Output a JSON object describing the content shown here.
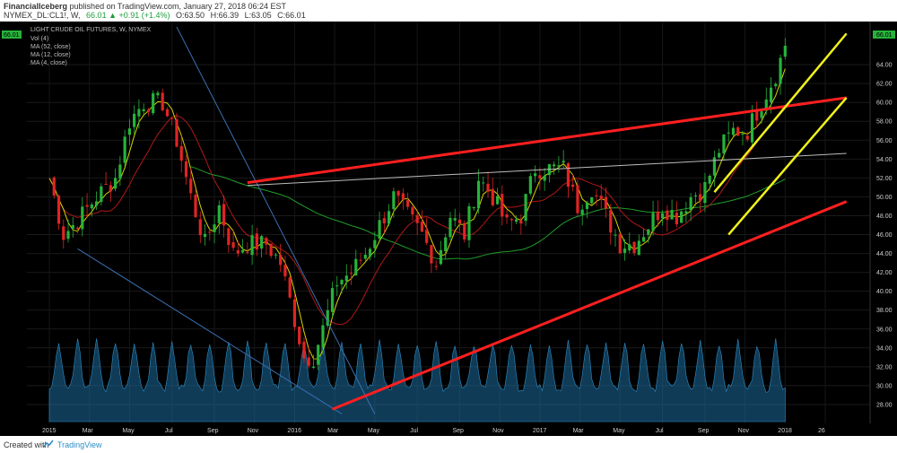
{
  "header": {
    "author": "FinancialIceberg",
    "published_text": "published on TradingView.com, January 27, 2018 06:24 EST",
    "symbol": "NYMEX_DL:CL1!, W,",
    "change": "66.01 ▲ +0.91 (+1.4%)",
    "o": "O:63.50",
    "h": "H:66.39",
    "l": "L:63.05",
    "c": "C:66.01"
  },
  "legend": {
    "title": "LIGHT CRUDE OIL FUTURES, W, NYMEX",
    "l1": "Vol (4)",
    "l2": "MA (52, close)",
    "l3": "MA (12, close)",
    "l4": "MA (4, close)"
  },
  "footer": {
    "created_with": "Created with",
    "brand": "TradingView"
  },
  "colors": {
    "background": "#000000",
    "candle_up": "#26b33b",
    "candle_down": "#e02424",
    "ma52": "#1f9e2a",
    "ma12": "#b01818",
    "ma4": "#d8d200",
    "trend_red": "#ff1f1f",
    "channel_yellow": "#f1f11a",
    "volume": "#1e6b9e"
  },
  "chart_data": {
    "type": "candlestick",
    "title": "LIGHT CRUDE OIL FUTURES, W, NYMEX",
    "ylim": [
      26,
      68
    ],
    "y_ticks": [
      28,
      30,
      32,
      34,
      36,
      38,
      40,
      42,
      44,
      46,
      48,
      50,
      52,
      54,
      56,
      58,
      60,
      62,
      64
    ],
    "y_tick_labels": [
      "28.00",
      "30.00",
      "32.00",
      "34.00",
      "36.00",
      "38.00",
      "40.00",
      "42.00",
      "44.00",
      "46.00",
      "48.00",
      "50.00",
      "52.00",
      "54.00",
      "56.00",
      "58.00",
      "60.00",
      "62.00",
      "64.00"
    ],
    "x_tick_labels": [
      "2015",
      "Mar",
      "May",
      "Jul",
      "Sep",
      "Nov",
      "2016",
      "Mar",
      "May",
      "Jul",
      "Sep",
      "Nov",
      "2017",
      "Mar",
      "May",
      "Jul",
      "Sep",
      "Nov",
      "2018",
      "26"
    ],
    "x_tick_weeks": [
      0,
      8.5,
      17,
      26,
      35,
      43.5,
      52,
      60.5,
      69,
      78,
      87,
      95.5,
      104,
      112.5,
      121,
      130,
      139,
      147.5,
      156,
      164.5
    ],
    "last_price": "66.01",
    "price_anchors": [
      [
        0,
        52
      ],
      [
        3,
        46
      ],
      [
        6,
        47.5
      ],
      [
        10,
        50
      ],
      [
        14,
        52
      ],
      [
        17,
        58
      ],
      [
        20,
        60
      ],
      [
        24,
        60
      ],
      [
        27,
        56
      ],
      [
        30,
        50
      ],
      [
        33,
        45
      ],
      [
        36,
        49
      ],
      [
        39,
        44
      ],
      [
        42,
        45
      ],
      [
        46,
        45
      ],
      [
        49,
        43
      ],
      [
        52,
        37
      ],
      [
        54,
        33
      ],
      [
        56,
        33
      ],
      [
        58,
        36
      ],
      [
        61,
        41
      ],
      [
        64,
        42
      ],
      [
        67,
        44
      ],
      [
        70,
        47
      ],
      [
        73,
        50
      ],
      [
        76,
        48
      ],
      [
        79,
        46
      ],
      [
        82,
        43
      ],
      [
        85,
        48
      ],
      [
        88,
        46
      ],
      [
        91,
        52
      ],
      [
        94,
        50
      ],
      [
        97,
        47
      ],
      [
        100,
        48
      ],
      [
        103,
        53
      ],
      [
        106,
        53
      ],
      [
        109,
        53
      ],
      [
        112,
        49
      ],
      [
        115,
        51
      ],
      [
        118,
        48
      ],
      [
        121,
        45
      ],
      [
        124,
        45
      ],
      [
        127,
        47
      ],
      [
        130,
        49
      ],
      [
        133,
        48
      ],
      [
        136,
        50
      ],
      [
        139,
        51
      ],
      [
        142,
        55
      ],
      [
        145,
        57
      ],
      [
        148,
        57
      ],
      [
        151,
        60
      ],
      [
        154,
        63
      ],
      [
        156,
        66
      ]
    ],
    "volume_peaks_every_weeks": 4,
    "overlays": {
      "red_trendline_upper": [
        [
          42,
          51.5
        ],
        [
          169,
          60.5
        ]
      ],
      "red_trendline_lower": [
        [
          60,
          27.5
        ],
        [
          169,
          49.5
        ]
      ],
      "white_line": [
        [
          42,
          51.2
        ],
        [
          169,
          54.6
        ]
      ],
      "yellow_channel_upper": [
        [
          141,
          50.5
        ],
        [
          169,
          67.3
        ]
      ],
      "yellow_channel_lower": [
        [
          144,
          46.0
        ],
        [
          169,
          60.5
        ]
      ],
      "blue_diagonal_1": [
        [
          27,
          68
        ],
        [
          69,
          27
        ]
      ],
      "blue_diagonal_2": [
        [
          6,
          44.5
        ],
        [
          62,
          27
        ]
      ]
    }
  }
}
